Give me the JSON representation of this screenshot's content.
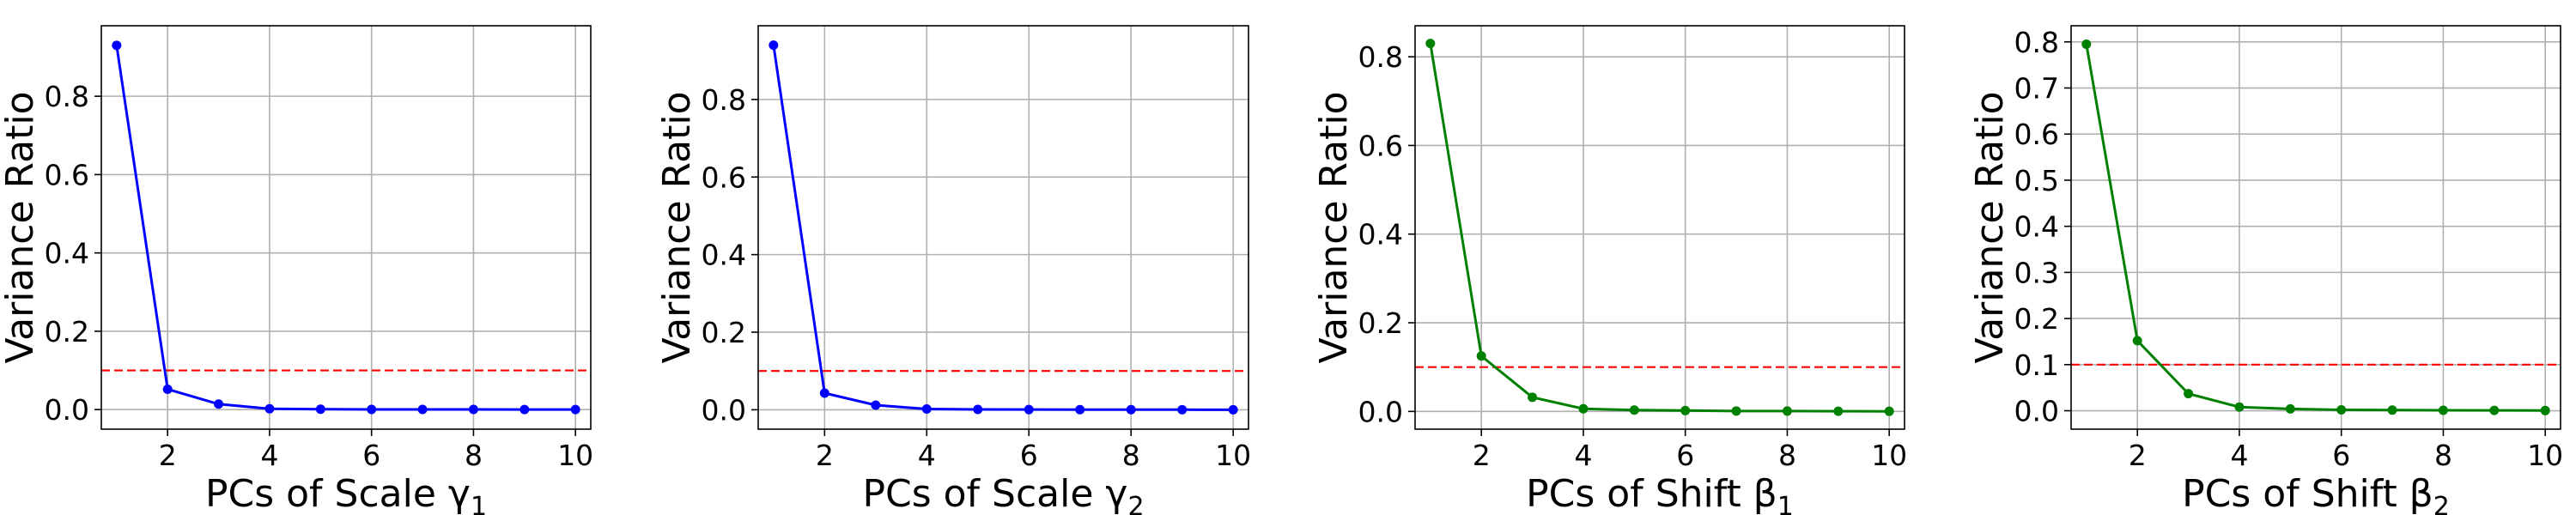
{
  "chart_data": [
    {
      "type": "line",
      "xlabel": "PCs of Scale γ",
      "xlabel_subscript": "1",
      "ylabel": "Variance Ratio",
      "color": "#0000ff",
      "x": [
        1,
        2,
        3,
        4,
        5,
        6,
        7,
        8,
        9,
        10
      ],
      "values": [
        0.93,
        0.052,
        0.014,
        0.002,
        0.001,
        0.0005,
        0.0004,
        0.0003,
        0.0002,
        0.0001
      ],
      "reference_line": {
        "y": 0.1,
        "color": "#ff0000",
        "style": "dashed"
      },
      "xlim": [
        0.7,
        10.3
      ],
      "ylim": [
        -0.05,
        0.98
      ],
      "xticks": [
        2,
        4,
        6,
        8,
        10
      ],
      "yticks": [
        0.0,
        0.2,
        0.4,
        0.6,
        0.8
      ],
      "ytick_labels": [
        "0.0",
        "0.2",
        "0.4",
        "0.6",
        "0.8"
      ],
      "grid": true
    },
    {
      "type": "line",
      "xlabel": "PCs of Scale γ",
      "xlabel_subscript": "2",
      "ylabel": "Variance Ratio",
      "color": "#0000ff",
      "x": [
        1,
        2,
        3,
        4,
        5,
        6,
        7,
        8,
        9,
        10
      ],
      "values": [
        0.94,
        0.043,
        0.012,
        0.002,
        0.001,
        0.0005,
        0.0004,
        0.0003,
        0.0002,
        0.0001
      ],
      "reference_line": {
        "y": 0.1,
        "color": "#ff0000",
        "style": "dashed"
      },
      "xlim": [
        0.7,
        10.3
      ],
      "ylim": [
        -0.05,
        0.99
      ],
      "xticks": [
        2,
        4,
        6,
        8,
        10
      ],
      "yticks": [
        0.0,
        0.2,
        0.4,
        0.6,
        0.8
      ],
      "ytick_labels": [
        "0.0",
        "0.2",
        "0.4",
        "0.6",
        "0.8"
      ],
      "grid": true
    },
    {
      "type": "line",
      "xlabel": "PCs of Shift β",
      "xlabel_subscript": "1",
      "ylabel": "Variance Ratio",
      "color": "#008000",
      "x": [
        1,
        2,
        3,
        4,
        5,
        6,
        7,
        8,
        9,
        10
      ],
      "values": [
        0.83,
        0.125,
        0.032,
        0.006,
        0.003,
        0.002,
        0.001,
        0.0008,
        0.0005,
        0.0003
      ],
      "reference_line": {
        "y": 0.1,
        "color": "#ff0000",
        "style": "dashed"
      },
      "xlim": [
        0.7,
        10.3
      ],
      "ylim": [
        -0.04,
        0.87
      ],
      "xticks": [
        2,
        4,
        6,
        8,
        10
      ],
      "yticks": [
        0.0,
        0.2,
        0.4,
        0.6,
        0.8
      ],
      "ytick_labels": [
        "0.0",
        "0.2",
        "0.4",
        "0.6",
        "0.8"
      ],
      "grid": true
    },
    {
      "type": "line",
      "xlabel": "PCs of Shift β",
      "xlabel_subscript": "2",
      "ylabel": "Variance Ratio",
      "color": "#008000",
      "x": [
        1,
        2,
        3,
        4,
        5,
        6,
        7,
        8,
        9,
        10
      ],
      "values": [
        0.795,
        0.152,
        0.037,
        0.008,
        0.004,
        0.002,
        0.0015,
        0.001,
        0.0007,
        0.0004
      ],
      "reference_line": {
        "y": 0.1,
        "color": "#ff0000",
        "style": "dashed"
      },
      "xlim": [
        0.7,
        10.3
      ],
      "ylim": [
        -0.04,
        0.835
      ],
      "xticks": [
        2,
        4,
        6,
        8,
        10
      ],
      "yticks": [
        0.0,
        0.1,
        0.2,
        0.3,
        0.4,
        0.5,
        0.6,
        0.7,
        0.8
      ],
      "ytick_labels": [
        "0.0",
        "0.1",
        "0.2",
        "0.3",
        "0.4",
        "0.5",
        "0.6",
        "0.7",
        "0.8"
      ],
      "grid": true
    }
  ]
}
